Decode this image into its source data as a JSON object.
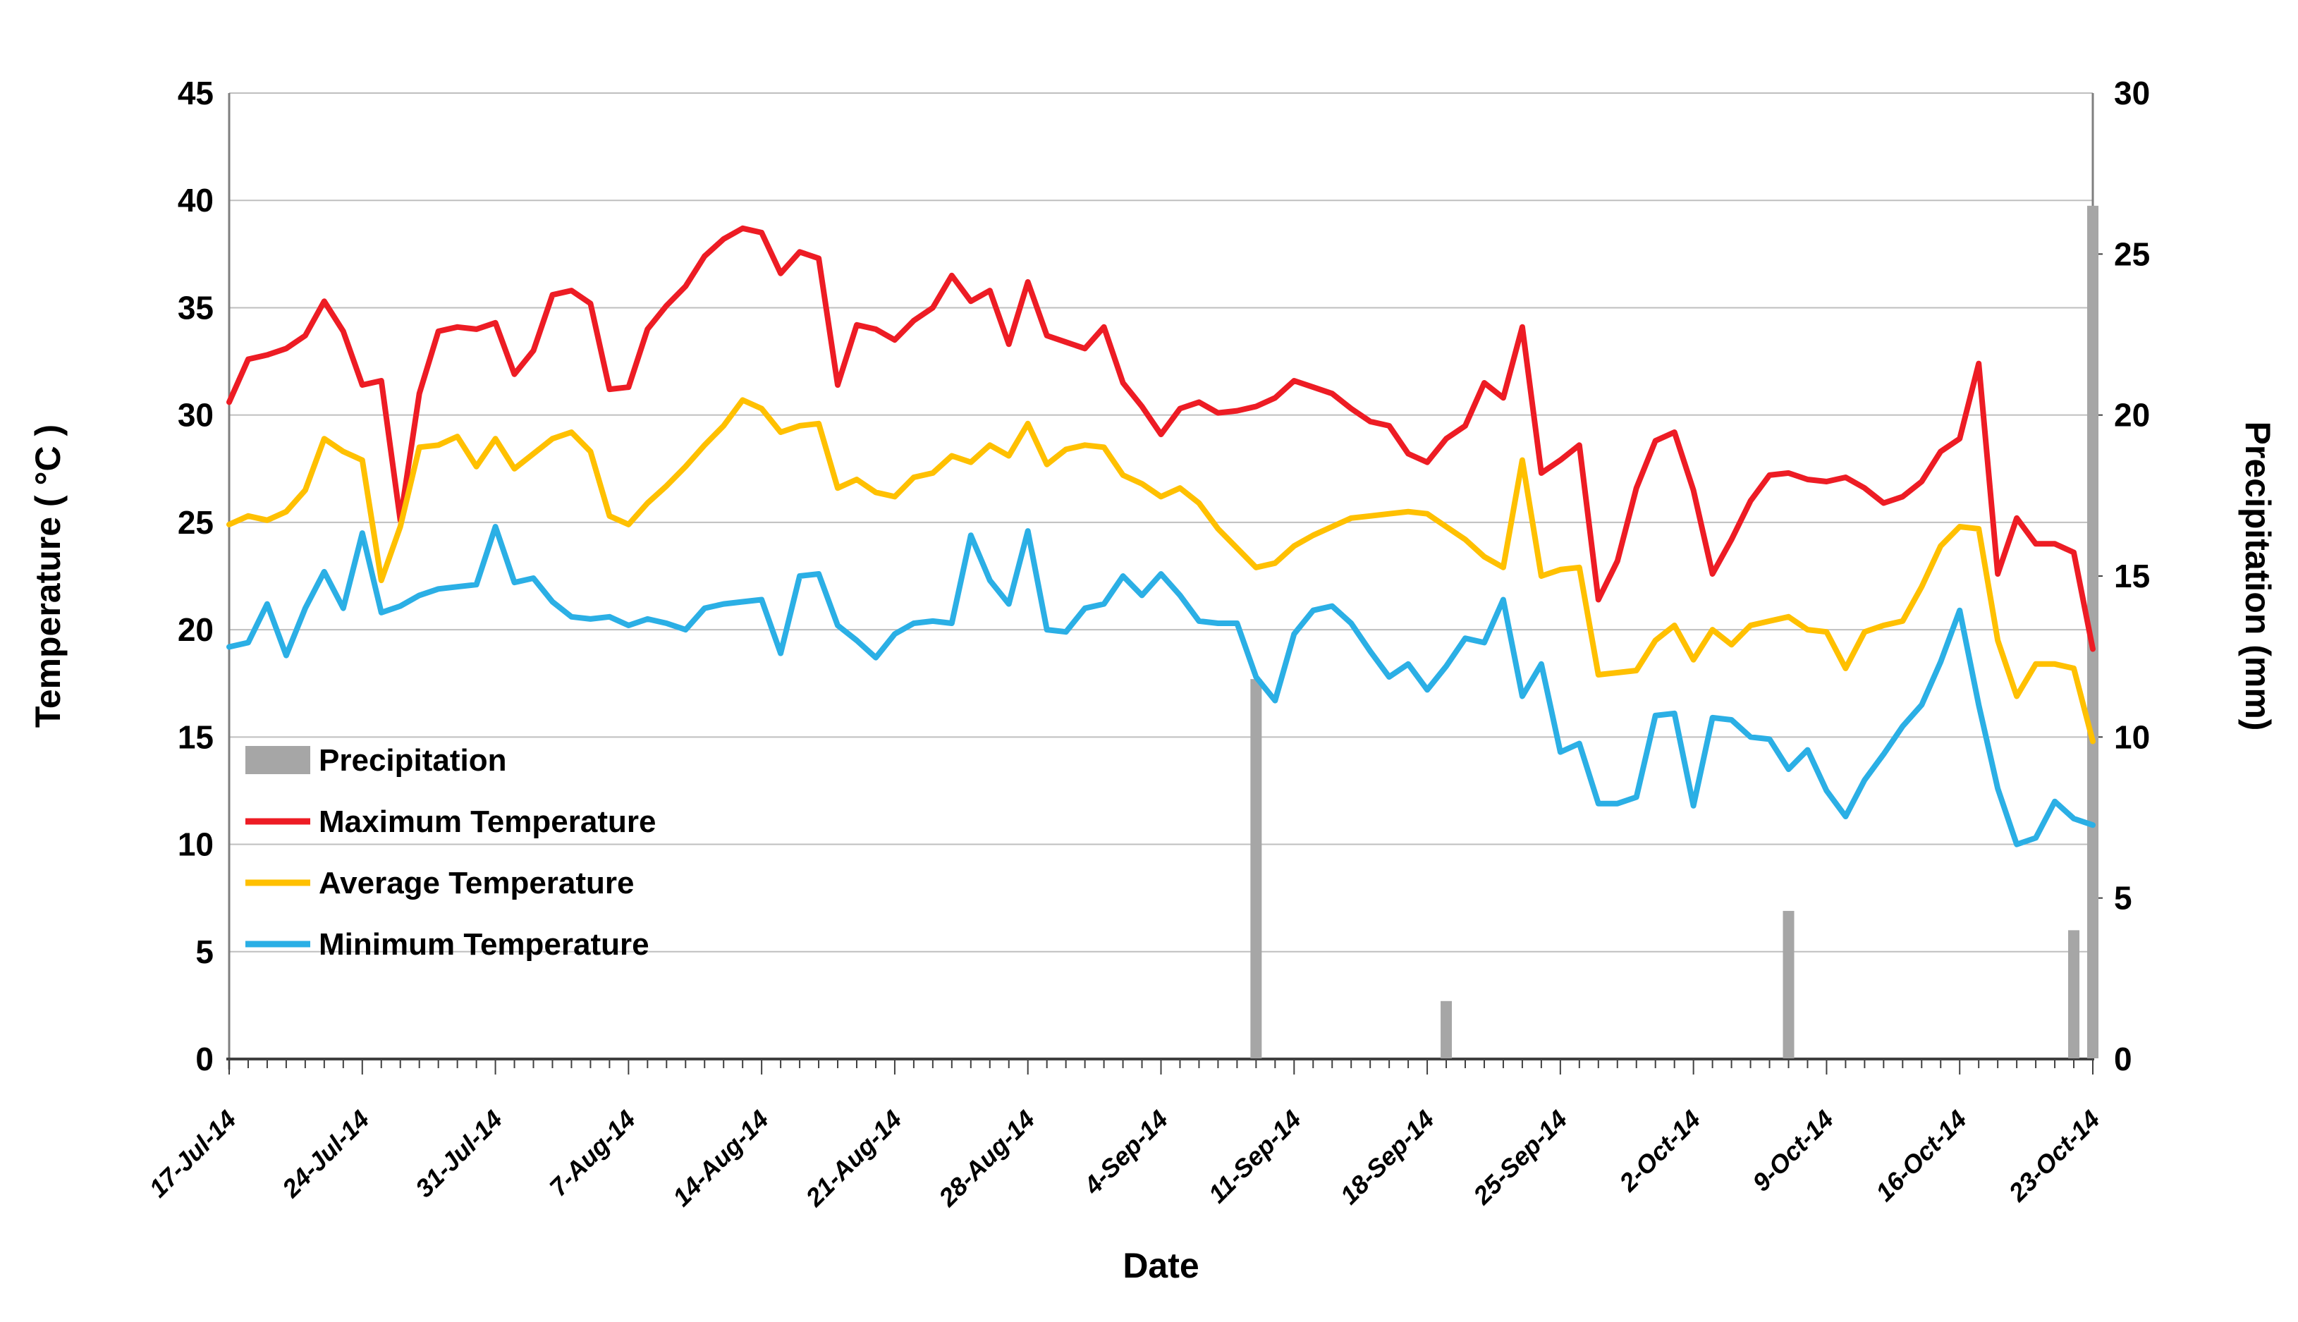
{
  "chart_data": {
    "type": "combo-line-bar",
    "title": "",
    "xlabel": "Date",
    "ylabel_left": "Temperature ( °C )",
    "ylabel_right": "Precipitation (mm)",
    "ylim_left": [
      0,
      45
    ],
    "ylim_right": [
      0,
      30
    ],
    "y_step": 5,
    "temp_ticks": [
      0,
      5,
      10,
      15,
      20,
      25,
      30,
      35,
      40,
      45
    ],
    "precip_ticks": [
      0,
      5,
      10,
      15,
      20,
      25,
      30
    ],
    "x_label_every": 7,
    "grid": "horizontal-only",
    "legend_position": "inside-left",
    "colors": {
      "max": "#ED1C24",
      "avg": "#FFC000",
      "min": "#2BAFE5",
      "precip": "#A6A6A6",
      "gridline": "#BFBFBF",
      "axis": "#404040"
    },
    "legend": [
      {
        "key": "precip",
        "type": "bar",
        "label": "Precipitation"
      },
      {
        "key": "max",
        "type": "line",
        "label": "Maximum Temperature"
      },
      {
        "key": "avg",
        "type": "line",
        "label": "Average Temperature"
      },
      {
        "key": "min",
        "type": "line",
        "label": "Minimum Temperature"
      }
    ],
    "categories": [
      "17-Jul-14",
      "18-Jul-14",
      "19-Jul-14",
      "20-Jul-14",
      "21-Jul-14",
      "22-Jul-14",
      "23-Jul-14",
      "24-Jul-14",
      "25-Jul-14",
      "26-Jul-14",
      "27-Jul-14",
      "28-Jul-14",
      "29-Jul-14",
      "30-Jul-14",
      "31-Jul-14",
      "1-Aug-14",
      "2-Aug-14",
      "3-Aug-14",
      "4-Aug-14",
      "5-Aug-14",
      "6-Aug-14",
      "7-Aug-14",
      "8-Aug-14",
      "9-Aug-14",
      "10-Aug-14",
      "11-Aug-14",
      "12-Aug-14",
      "13-Aug-14",
      "14-Aug-14",
      "15-Aug-14",
      "16-Aug-14",
      "17-Aug-14",
      "18-Aug-14",
      "19-Aug-14",
      "20-Aug-14",
      "21-Aug-14",
      "22-Aug-14",
      "23-Aug-14",
      "24-Aug-14",
      "25-Aug-14",
      "26-Aug-14",
      "27-Aug-14",
      "28-Aug-14",
      "29-Aug-14",
      "30-Aug-14",
      "31-Aug-14",
      "1-Sep-14",
      "2-Sep-14",
      "3-Sep-14",
      "4-Sep-14",
      "5-Sep-14",
      "6-Sep-14",
      "7-Sep-14",
      "8-Sep-14",
      "9-Sep-14",
      "10-Sep-14",
      "11-Sep-14",
      "12-Sep-14",
      "13-Sep-14",
      "14-Sep-14",
      "15-Sep-14",
      "16-Sep-14",
      "17-Sep-14",
      "18-Sep-14",
      "19-Sep-14",
      "20-Sep-14",
      "21-Sep-14",
      "22-Sep-14",
      "23-Sep-14",
      "24-Sep-14",
      "25-Sep-14",
      "26-Sep-14",
      "27-Sep-14",
      "28-Sep-14",
      "29-Sep-14",
      "30-Sep-14",
      "1-Oct-14",
      "2-Oct-14",
      "3-Oct-14",
      "4-Oct-14",
      "5-Oct-14",
      "6-Oct-14",
      "7-Oct-14",
      "8-Oct-14",
      "9-Oct-14",
      "10-Oct-14",
      "11-Oct-14",
      "12-Oct-14",
      "13-Oct-14",
      "14-Oct-14",
      "15-Oct-14",
      "16-Oct-14",
      "17-Oct-14",
      "18-Oct-14",
      "19-Oct-14",
      "20-Oct-14",
      "21-Oct-14",
      "22-Oct-14",
      "23-Oct-14"
    ],
    "series": [
      {
        "name": "Maximum Temperature",
        "key": "max",
        "values": [
          30.6,
          32.6,
          32.8,
          33.1,
          33.7,
          35.3,
          33.9,
          31.4,
          31.6,
          25.1,
          31.0,
          33.9,
          34.1,
          34.0,
          34.3,
          31.9,
          33.0,
          35.6,
          35.8,
          35.2,
          31.2,
          31.3,
          34.0,
          35.1,
          36.0,
          37.4,
          38.2,
          38.7,
          38.5,
          36.6,
          37.6,
          37.3,
          31.4,
          34.2,
          34.0,
          33.5,
          34.4,
          35.0,
          36.5,
          35.3,
          35.8,
          33.3,
          36.2,
          33.7,
          33.4,
          33.1,
          34.1,
          31.5,
          30.4,
          29.1,
          30.3,
          30.6,
          30.1,
          30.2,
          30.4,
          30.8,
          31.6,
          31.3,
          31.0,
          30.3,
          29.7,
          29.5,
          28.2,
          27.8,
          28.9,
          29.5,
          31.5,
          30.8,
          34.1,
          27.3,
          27.9,
          28.6,
          21.4,
          23.2,
          26.6,
          28.8,
          29.2,
          26.5,
          22.6,
          24.2,
          26.0,
          27.2,
          27.3,
          27.0,
          26.9,
          27.1,
          26.6,
          25.9,
          26.2,
          26.9,
          28.3,
          28.9,
          32.4,
          22.6,
          25.2,
          24.0,
          24.0,
          23.6,
          19.1
        ]
      },
      {
        "name": "Average Temperature",
        "key": "avg",
        "values": [
          24.9,
          25.3,
          25.1,
          25.5,
          26.5,
          28.9,
          28.3,
          27.9,
          22.3,
          24.8,
          28.5,
          28.6,
          29.0,
          27.6,
          28.9,
          27.5,
          28.2,
          28.9,
          29.2,
          28.3,
          25.3,
          24.9,
          25.9,
          26.7,
          27.6,
          28.6,
          29.5,
          30.7,
          30.3,
          29.2,
          29.5,
          29.6,
          26.6,
          27.0,
          26.4,
          26.2,
          27.1,
          27.3,
          28.1,
          27.8,
          28.6,
          28.1,
          29.6,
          27.7,
          28.4,
          28.6,
          28.5,
          27.2,
          26.8,
          26.2,
          26.6,
          25.9,
          24.7,
          23.8,
          22.9,
          23.1,
          23.9,
          24.4,
          24.8,
          25.2,
          25.3,
          25.4,
          25.5,
          25.4,
          24.8,
          24.2,
          23.4,
          22.9,
          27.9,
          22.5,
          22.8,
          22.9,
          17.9,
          18.0,
          18.1,
          19.5,
          20.2,
          18.6,
          20.0,
          19.3,
          20.2,
          20.4,
          20.6,
          20.0,
          19.9,
          18.2,
          19.9,
          20.2,
          20.4,
          22.0,
          23.9,
          24.8,
          24.7,
          19.5,
          16.9,
          18.4,
          18.4,
          18.2,
          14.8
        ]
      },
      {
        "name": "Minimum Temperature",
        "key": "min",
        "values": [
          19.2,
          19.4,
          21.2,
          18.8,
          21.0,
          22.7,
          21.0,
          24.5,
          20.8,
          21.1,
          21.6,
          21.9,
          22.0,
          22.1,
          24.8,
          22.2,
          22.4,
          21.3,
          20.6,
          20.5,
          20.6,
          20.2,
          20.5,
          20.3,
          20.0,
          21.0,
          21.2,
          21.3,
          21.4,
          18.9,
          22.5,
          22.6,
          20.2,
          19.5,
          18.7,
          19.8,
          20.3,
          20.4,
          20.3,
          24.4,
          22.3,
          21.2,
          24.6,
          20.0,
          19.9,
          21.0,
          21.2,
          22.5,
          21.6,
          22.6,
          21.6,
          20.4,
          20.3,
          20.3,
          17.8,
          16.7,
          19.8,
          20.9,
          21.1,
          20.3,
          19.0,
          17.8,
          18.4,
          17.2,
          18.3,
          19.6,
          19.4,
          21.4,
          16.9,
          18.4,
          14.3,
          14.7,
          11.9,
          11.9,
          12.2,
          16.0,
          16.1,
          11.8,
          15.9,
          15.8,
          15.0,
          14.9,
          13.5,
          14.4,
          12.5,
          11.3,
          13.0,
          14.2,
          15.5,
          16.5,
          18.5,
          20.9,
          16.5,
          12.6,
          10.0,
          10.3,
          12.0,
          11.2,
          10.9
        ]
      },
      {
        "name": "Precipitation",
        "key": "precip",
        "unit": "mm",
        "values": [
          0,
          0,
          0,
          0,
          0,
          0,
          0,
          0,
          0,
          0,
          0,
          0,
          0,
          0,
          0,
          0,
          0,
          0,
          0,
          0,
          0,
          0,
          0,
          0,
          0,
          0,
          0,
          0,
          0,
          0,
          0,
          0,
          0,
          0,
          0,
          0,
          0,
          0,
          0,
          0,
          0,
          0,
          0,
          0,
          0,
          0,
          0,
          0,
          0,
          0,
          0,
          0,
          0,
          0,
          11.8,
          0,
          0,
          0,
          0,
          0,
          0,
          0,
          0,
          0,
          1.8,
          0,
          0,
          0,
          0,
          0,
          0,
          0,
          0,
          0,
          0,
          0,
          0,
          0,
          0,
          0,
          0,
          0,
          4.6,
          0,
          0,
          0,
          0,
          0,
          0,
          0,
          0,
          0,
          0,
          0,
          0,
          0,
          0,
          4.0,
          26.5
        ]
      }
    ]
  }
}
